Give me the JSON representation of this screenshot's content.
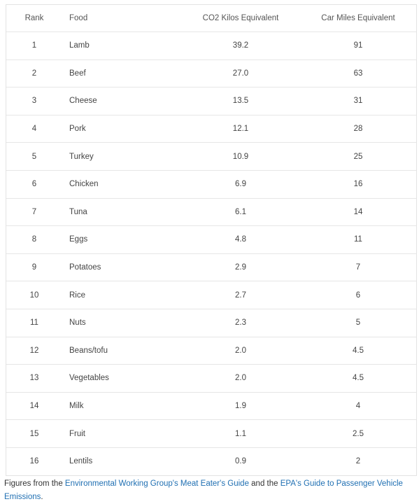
{
  "table": {
    "headers": {
      "rank": "Rank",
      "food": "Food",
      "co2": "CO2 Kilos Equivalent",
      "car": "Car Miles Equivalent"
    },
    "rows": [
      {
        "rank": "1",
        "food": "Lamb",
        "co2": "39.2",
        "car": "91"
      },
      {
        "rank": "2",
        "food": "Beef",
        "co2": "27.0",
        "car": "63"
      },
      {
        "rank": "3",
        "food": "Cheese",
        "co2": "13.5",
        "car": "31"
      },
      {
        "rank": "4",
        "food": "Pork",
        "co2": "12.1",
        "car": "28"
      },
      {
        "rank": "5",
        "food": "Turkey",
        "co2": "10.9",
        "car": "25"
      },
      {
        "rank": "6",
        "food": "Chicken",
        "co2": "6.9",
        "car": "16"
      },
      {
        "rank": "7",
        "food": "Tuna",
        "co2": "6.1",
        "car": "14"
      },
      {
        "rank": "8",
        "food": "Eggs",
        "co2": "4.8",
        "car": "11"
      },
      {
        "rank": "9",
        "food": "Potatoes",
        "co2": "2.9",
        "car": "7"
      },
      {
        "rank": "10",
        "food": "Rice",
        "co2": "2.7",
        "car": "6"
      },
      {
        "rank": "11",
        "food": "Nuts",
        "co2": "2.3",
        "car": "5"
      },
      {
        "rank": "12",
        "food": "Beans/tofu",
        "co2": "2.0",
        "car": "4.5"
      },
      {
        "rank": "13",
        "food": "Vegetables",
        "co2": "2.0",
        "car": "4.5"
      },
      {
        "rank": "14",
        "food": "Milk",
        "co2": "1.9",
        "car": "4"
      },
      {
        "rank": "15",
        "food": "Fruit",
        "co2": "1.1",
        "car": "2.5"
      },
      {
        "rank": "16",
        "food": "Lentils",
        "co2": "0.9",
        "car": "2"
      }
    ]
  },
  "footnote": {
    "prefix": "Figures from the ",
    "link1": "Environmental Working Group's Meat Eater's Guide",
    "middle": " and the ",
    "link2": "EPA's Guide to Passenger Vehicle Emissions",
    "suffix": ".",
    "link_color": "#1f6fb2"
  }
}
